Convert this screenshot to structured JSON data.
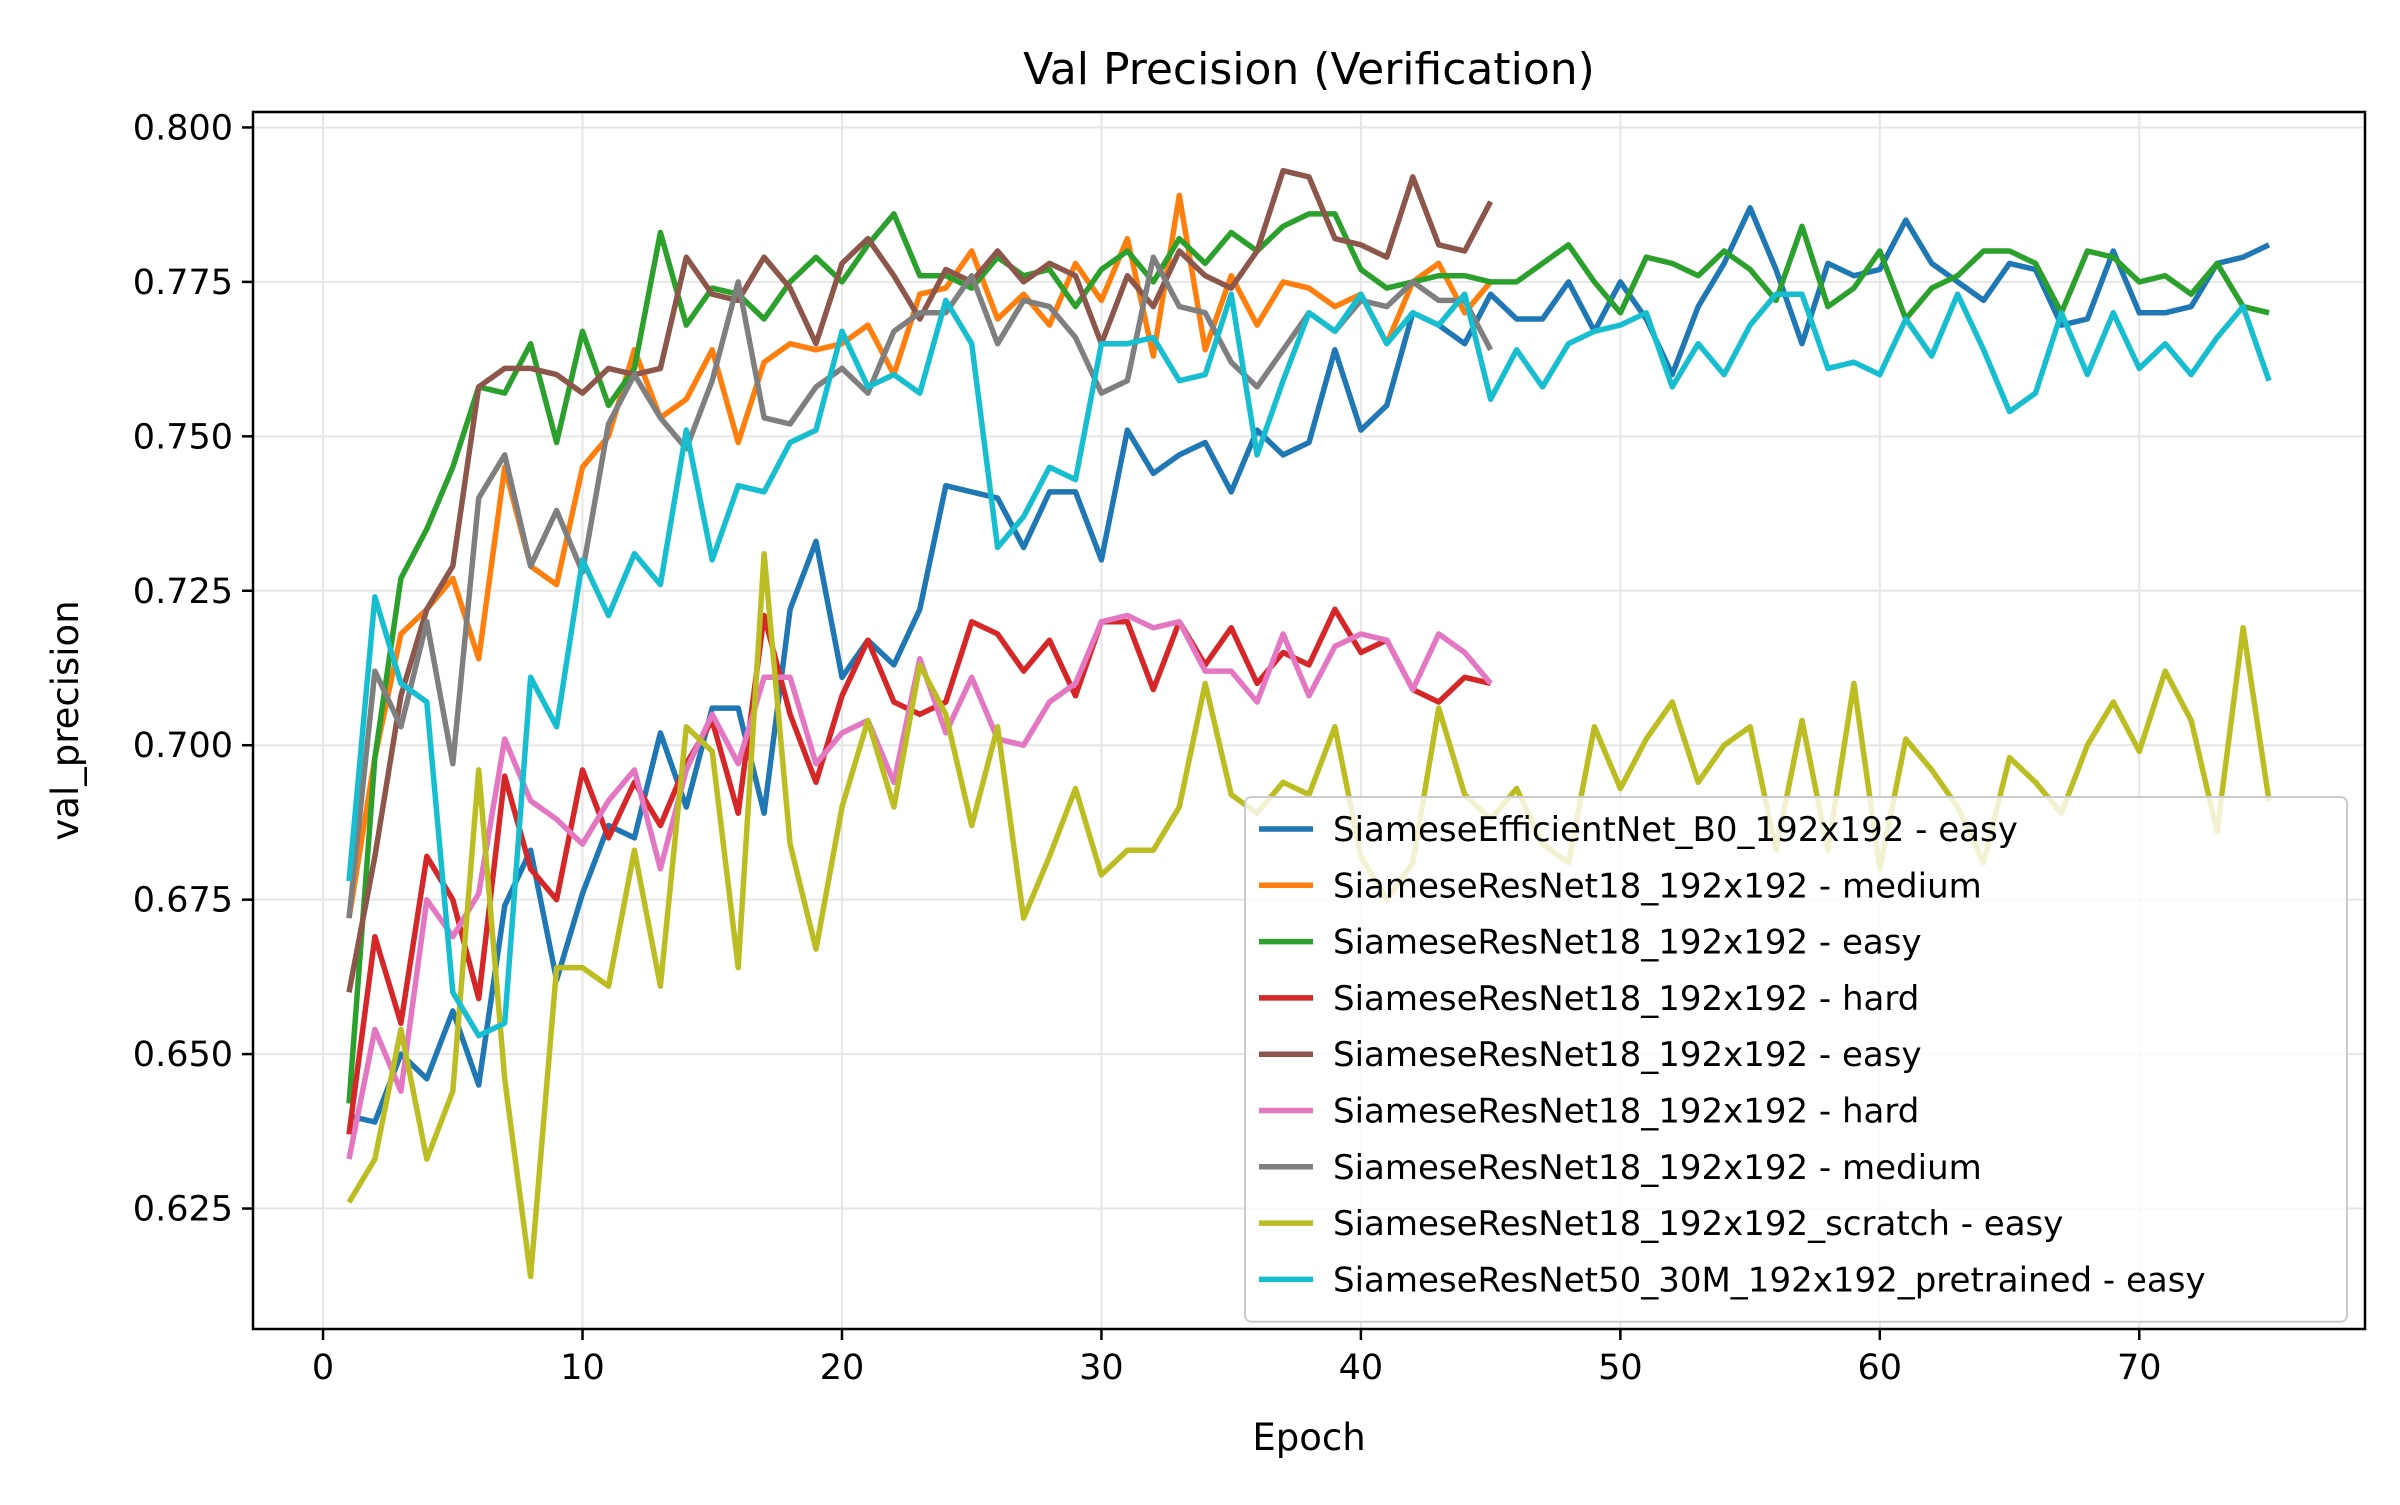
{
  "chart_data": {
    "type": "line",
    "title": "Val Precision (Verification)",
    "xlabel": "Epoch",
    "ylabel": "val_precision",
    "xlim": [
      -2.7,
      78.7
    ],
    "ylim": [
      0.6055,
      0.8025
    ],
    "xticks": [
      0,
      10,
      20,
      30,
      40,
      50,
      60,
      70
    ],
    "yticks": [
      0.625,
      0.65,
      0.675,
      0.7,
      0.725,
      0.75,
      0.775,
      0.8
    ],
    "ytick_labels": [
      "0.625",
      "0.650",
      "0.675",
      "0.700",
      "0.725",
      "0.750",
      "0.775",
      "0.800"
    ],
    "grid": true,
    "legend_position": "lower right",
    "series": [
      {
        "name": "SiameseEfficientNet_B0_192x192 - easy",
        "color": "#1f77b4",
        "x_start": 1,
        "values": [
          0.64,
          0.639,
          0.65,
          0.646,
          0.657,
          0.645,
          0.674,
          0.683,
          0.662,
          0.676,
          0.687,
          0.685,
          0.702,
          0.69,
          0.706,
          0.706,
          0.689,
          0.722,
          0.733,
          0.711,
          0.717,
          0.713,
          0.722,
          0.742,
          0.741,
          0.74,
          0.732,
          0.741,
          0.741,
          0.73,
          0.751,
          0.744,
          0.747,
          0.749,
          0.741,
          0.751,
          0.747,
          0.749,
          0.764,
          0.751,
          0.755,
          0.77,
          0.768,
          0.765,
          0.773,
          0.769,
          0.769,
          0.775,
          0.767,
          0.775,
          0.769,
          0.76,
          0.771,
          0.778,
          0.787,
          0.777,
          0.765,
          0.778,
          0.776,
          0.777,
          0.785,
          0.778,
          0.775,
          0.772,
          0.778,
          0.777,
          0.768,
          0.769,
          0.78,
          0.77,
          0.77,
          0.771,
          0.778,
          0.779,
          0.781
        ]
      },
      {
        "name": "SiameseResNet18_192x192 - medium",
        "color": "#ff7f0e",
        "x_start": 1,
        "values": [
          0.672,
          0.698,
          0.718,
          0.722,
          0.727,
          0.714,
          0.745,
          0.729,
          0.726,
          0.745,
          0.75,
          0.764,
          0.753,
          0.756,
          0.764,
          0.749,
          0.762,
          0.765,
          0.764,
          0.765,
          0.768,
          0.76,
          0.773,
          0.774,
          0.78,
          0.769,
          0.773,
          0.768,
          0.778,
          0.772,
          0.782,
          0.763,
          0.789,
          0.764,
          0.776,
          0.768,
          0.775,
          0.774,
          0.771,
          0.773,
          0.765,
          0.775,
          0.778,
          0.77,
          0.775
        ]
      },
      {
        "name": "SiameseResNet18_192x192 - easy",
        "color": "#2ca02c",
        "x_start": 1,
        "values": [
          0.642,
          0.698,
          0.727,
          0.735,
          0.745,
          0.758,
          0.757,
          0.765,
          0.749,
          0.767,
          0.755,
          0.761,
          0.783,
          0.768,
          0.774,
          0.773,
          0.769,
          0.775,
          0.779,
          0.775,
          0.781,
          0.786,
          0.776,
          0.776,
          0.774,
          0.779,
          0.776,
          0.777,
          0.771,
          0.777,
          0.78,
          0.775,
          0.782,
          0.778,
          0.783,
          0.78,
          0.784,
          0.786,
          0.786,
          0.777,
          0.774,
          0.775,
          0.776,
          0.776,
          0.775,
          0.775,
          0.778,
          0.781,
          0.775,
          0.77,
          0.779,
          0.778,
          0.776,
          0.78,
          0.777,
          0.772,
          0.784,
          0.771,
          0.774,
          0.78,
          0.769,
          0.774,
          0.776,
          0.78,
          0.78,
          0.778,
          0.77,
          0.78,
          0.779,
          0.775,
          0.776,
          0.773,
          0.778,
          0.771,
          0.77
        ]
      },
      {
        "name": "SiameseResNet18_192x192 - hard",
        "color": "#d62728",
        "x_start": 1,
        "values": [
          0.637,
          0.669,
          0.655,
          0.682,
          0.675,
          0.659,
          0.695,
          0.68,
          0.675,
          0.696,
          0.685,
          0.694,
          0.687,
          0.697,
          0.704,
          0.689,
          0.721,
          0.705,
          0.694,
          0.708,
          0.717,
          0.707,
          0.705,
          0.707,
          0.72,
          0.718,
          0.712,
          0.717,
          0.708,
          0.72,
          0.72,
          0.709,
          0.72,
          0.713,
          0.719,
          0.71,
          0.715,
          0.713,
          0.722,
          0.715,
          0.717,
          0.709,
          0.707,
          0.711,
          0.71
        ]
      },
      {
        "name": "SiameseResNet18_192x192 - easy",
        "color": "#8c564b",
        "x_start": 1,
        "values": [
          0.66,
          0.682,
          0.708,
          0.722,
          0.729,
          0.758,
          0.761,
          0.761,
          0.76,
          0.757,
          0.761,
          0.76,
          0.761,
          0.779,
          0.773,
          0.772,
          0.779,
          0.774,
          0.765,
          0.778,
          0.782,
          0.776,
          0.769,
          0.777,
          0.775,
          0.78,
          0.775,
          0.778,
          0.776,
          0.765,
          0.776,
          0.771,
          0.78,
          0.776,
          0.774,
          0.78,
          0.793,
          0.792,
          0.782,
          0.781,
          0.779,
          0.792,
          0.781,
          0.78,
          0.788
        ]
      },
      {
        "name": "SiameseResNet18_192x192 - hard",
        "color": "#e377c2",
        "x_start": 1,
        "values": [
          0.633,
          0.654,
          0.644,
          0.675,
          0.669,
          0.676,
          0.701,
          0.691,
          0.688,
          0.684,
          0.691,
          0.696,
          0.68,
          0.696,
          0.705,
          0.697,
          0.711,
          0.711,
          0.697,
          0.702,
          0.704,
          0.694,
          0.714,
          0.702,
          0.711,
          0.701,
          0.7,
          0.707,
          0.71,
          0.72,
          0.721,
          0.719,
          0.72,
          0.712,
          0.712,
          0.707,
          0.718,
          0.708,
          0.716,
          0.718,
          0.717,
          0.709,
          0.718,
          0.715,
          0.71
        ]
      },
      {
        "name": "SiameseResNet18_192x192 - medium",
        "color": "#7f7f7f",
        "x_start": 1,
        "values": [
          0.672,
          0.712,
          0.703,
          0.72,
          0.697,
          0.74,
          0.747,
          0.729,
          0.738,
          0.728,
          0.752,
          0.76,
          0.753,
          0.748,
          0.759,
          0.775,
          0.753,
          0.752,
          0.758,
          0.761,
          0.757,
          0.767,
          0.77,
          0.77,
          0.776,
          0.765,
          0.772,
          0.771,
          0.766,
          0.757,
          0.759,
          0.779,
          0.771,
          0.77,
          0.762,
          0.758,
          0.764,
          0.77,
          0.767,
          0.772,
          0.771,
          0.775,
          0.772,
          0.772,
          0.764
        ]
      },
      {
        "name": "SiameseResNet18_192x192_scratch - easy",
        "color": "#bcbd22",
        "x_start": 1,
        "values": [
          0.626,
          0.633,
          0.654,
          0.633,
          0.644,
          0.696,
          0.646,
          0.614,
          0.664,
          0.664,
          0.661,
          0.683,
          0.661,
          0.703,
          0.699,
          0.664,
          0.731,
          0.684,
          0.667,
          0.69,
          0.704,
          0.69,
          0.713,
          0.705,
          0.687,
          0.703,
          0.672,
          0.682,
          0.693,
          0.679,
          0.683,
          0.683,
          0.69,
          0.71,
          0.692,
          0.689,
          0.694,
          0.692,
          0.703,
          0.682,
          0.675,
          0.681,
          0.706,
          0.692,
          0.688,
          0.693,
          0.684,
          0.681,
          0.703,
          0.693,
          0.701,
          0.707,
          0.694,
          0.7,
          0.703,
          0.683,
          0.704,
          0.683,
          0.71,
          0.68,
          0.701,
          0.696,
          0.69,
          0.681,
          0.698,
          0.694,
          0.689,
          0.7,
          0.707,
          0.699,
          0.712,
          0.704,
          0.686,
          0.719,
          0.691
        ]
      },
      {
        "name": "SiameseResNet50_30M_192x192_pretrained - easy",
        "color": "#17becf",
        "x_start": 1,
        "values": [
          0.678,
          0.724,
          0.71,
          0.707,
          0.66,
          0.653,
          0.655,
          0.711,
          0.703,
          0.73,
          0.721,
          0.731,
          0.726,
          0.751,
          0.73,
          0.742,
          0.741,
          0.749,
          0.751,
          0.767,
          0.758,
          0.76,
          0.757,
          0.772,
          0.765,
          0.732,
          0.737,
          0.745,
          0.743,
          0.765,
          0.765,
          0.766,
          0.759,
          0.76,
          0.773,
          0.747,
          0.759,
          0.77,
          0.767,
          0.773,
          0.765,
          0.77,
          0.768,
          0.773,
          0.756,
          0.764,
          0.758,
          0.765,
          0.767,
          0.768,
          0.77,
          0.758,
          0.765,
          0.76,
          0.768,
          0.773,
          0.773,
          0.761,
          0.762,
          0.76,
          0.769,
          0.763,
          0.773,
          0.764,
          0.754,
          0.757,
          0.77,
          0.76,
          0.77,
          0.761,
          0.765,
          0.76,
          0.766,
          0.771,
          0.759
        ]
      }
    ]
  }
}
